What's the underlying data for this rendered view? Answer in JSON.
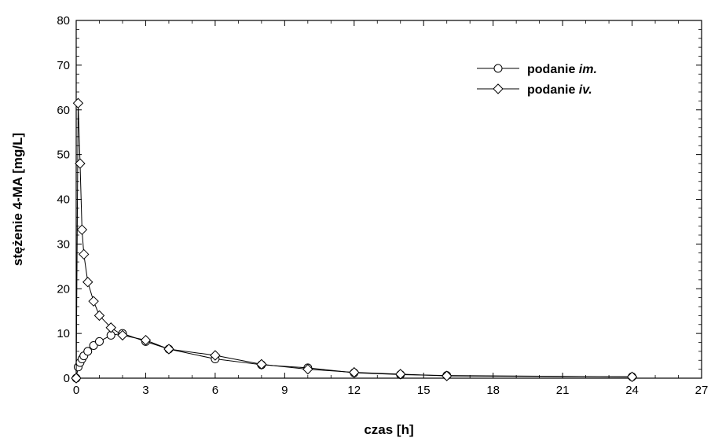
{
  "chart_data": {
    "type": "line",
    "xlabel": "czas [h]",
    "ylabel": "stężenie 4-MA [mg/L]",
    "xlim": [
      0,
      27
    ],
    "ylim": [
      0,
      80
    ],
    "x_ticks": [
      0,
      3,
      6,
      9,
      12,
      15,
      18,
      21,
      24,
      27
    ],
    "y_ticks": [
      0,
      10,
      20,
      30,
      40,
      50,
      60,
      70,
      80
    ],
    "x_tick_labels": [
      "0",
      "3",
      "6",
      "9",
      "12",
      "15",
      "18",
      "21",
      "24",
      "27"
    ],
    "y_tick_labels": [
      "0",
      "10",
      "20",
      "30",
      "40",
      "50",
      "60",
      "70",
      "80"
    ],
    "grid": false,
    "legend_position": "top-right",
    "series": [
      {
        "name_prefix": "podanie ",
        "name_suffix": "im.",
        "marker": "circle",
        "color": "#000000",
        "x": [
          0,
          0.083,
          0.167,
          0.25,
          0.33,
          0.5,
          0.75,
          1,
          1.5,
          2,
          3,
          4,
          6,
          8,
          10,
          12,
          14,
          16,
          24
        ],
        "y": [
          0,
          2.5,
          3.5,
          4.3,
          5.0,
          6.0,
          7.3,
          8.2,
          9.6,
          10.0,
          8.2,
          6.5,
          4.3,
          3.0,
          2.3,
          1.2,
          0.8,
          0.6,
          0.3
        ]
      },
      {
        "name_prefix": "podanie ",
        "name_suffix": "iv.",
        "marker": "diamond",
        "color": "#000000",
        "x": [
          0,
          0.083,
          0.167,
          0.25,
          0.33,
          0.5,
          0.75,
          1,
          1.5,
          2,
          3,
          4,
          6,
          8,
          10,
          12,
          14,
          16,
          24
        ],
        "y": [
          0,
          61.5,
          48.0,
          33.2,
          27.7,
          21.5,
          17.2,
          14.0,
          11.3,
          9.6,
          8.5,
          6.5,
          5.1,
          3.1,
          2.0,
          1.3,
          0.9,
          0.5,
          0.3
        ]
      }
    ]
  }
}
